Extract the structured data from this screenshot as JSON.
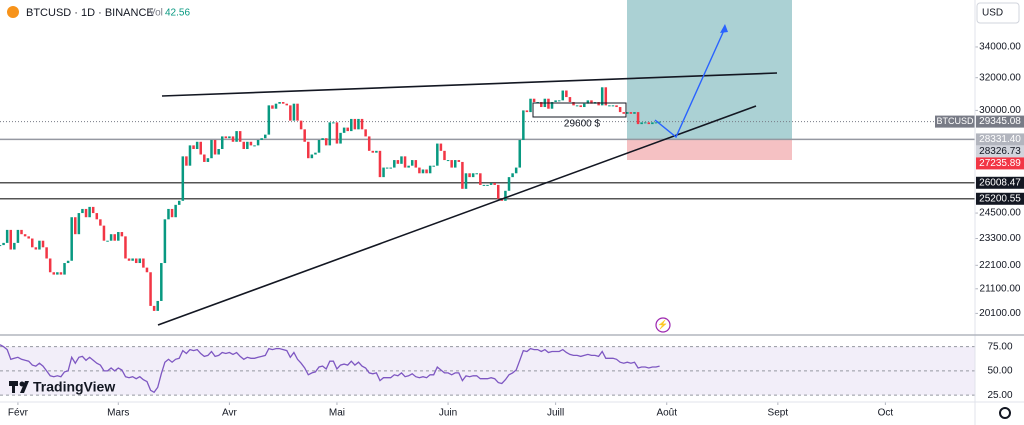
{
  "header": {
    "symbol": "BTCUSD · 1D · BINANCE",
    "vol_label": "Vol",
    "vol_value": "42.56",
    "currency": "USD",
    "brand": "TradingView",
    "note": "29600 $"
  },
  "chart_data": [
    {
      "type": "candlestick",
      "values": [
        23000,
        23100,
        23700,
        22800,
        23100,
        23700,
        23500,
        23400,
        23300,
        22900,
        22800,
        23200,
        22900,
        22400,
        21800,
        21700,
        21800,
        21700,
        22200,
        22300,
        24300,
        23500,
        24500,
        24700,
        24300,
        24800,
        24500,
        24200,
        23900,
        23200,
        23200,
        23500,
        23200,
        23600,
        23400,
        22400,
        22300,
        22400,
        22200,
        22400,
        22000,
        21800,
        20400,
        20200,
        20600,
        22200,
        24200,
        24700,
        24300,
        24900,
        25100,
        27400,
        26900,
        28000,
        27800,
        28200,
        27500,
        27100,
        27300,
        28300,
        27500,
        27800,
        28500,
        28400,
        28500,
        28200,
        28800,
        28200,
        27800,
        28200,
        28000,
        28000,
        28300,
        28400,
        28600,
        30300,
        30100,
        30400,
        30500,
        30400,
        30300,
        29400,
        30400,
        29400,
        28900,
        28200,
        27300,
        27500,
        27600,
        28300,
        28400,
        28000,
        29300,
        29300,
        28100,
        28700,
        29000,
        28800,
        29500,
        28900,
        29500,
        28900,
        28500,
        27700,
        27600,
        27700,
        26300,
        26800,
        26800,
        26800,
        27200,
        27000,
        27400,
        26800,
        26900,
        27200,
        26800,
        26500,
        26700,
        26500,
        26900,
        26900,
        28100,
        27700,
        27200,
        27200,
        26800,
        27200,
        27100,
        25700,
        26500,
        26300,
        26500,
        26500,
        25900,
        25900,
        25900,
        26000,
        25900,
        25200,
        25100,
        25600,
        26300,
        26500,
        26800,
        28300,
        30000,
        29900,
        30700,
        30500,
        30500,
        30200,
        30700,
        30100,
        30500,
        30600,
        30600,
        31200,
        30800,
        30500,
        30300,
        30300,
        30200,
        30400,
        30600,
        30400,
        30500,
        30300,
        31400,
        30300,
        30300,
        30300,
        30200,
        29900,
        29800,
        29900,
        29800,
        29900,
        29200,
        29300,
        29300,
        29200,
        29300,
        29300,
        29345
      ],
      "up_color": "#089981",
      "down_color": "#f23645",
      "xlim": [
        0,
        272
      ],
      "xticks": [
        {
          "value": 5,
          "label": "Févr"
        },
        {
          "value": 33,
          "label": "Mars"
        },
        {
          "value": 64,
          "label": "Avr"
        },
        {
          "value": 94,
          "label": "Mai"
        },
        {
          "value": 125,
          "label": "Juin"
        },
        {
          "value": 155,
          "label": "Juill"
        },
        {
          "value": 186,
          "label": "Août"
        },
        {
          "value": 217,
          "label": "Sept"
        },
        {
          "value": 247,
          "label": "Oct"
        }
      ],
      "log_scale": true,
      "ylim": [
        19300,
        37300
      ],
      "yticks": [
        {
          "value": 34000,
          "label": "34000.00"
        },
        {
          "value": 32000,
          "label": "32000.00"
        },
        {
          "value": 30000,
          "label": "30000.00"
        },
        {
          "value": 24500,
          "label": "24500.00"
        },
        {
          "value": 23300,
          "label": "23300.00"
        },
        {
          "value": 22100,
          "label": "22100.00"
        },
        {
          "value": 21100,
          "label": "21100.00"
        },
        {
          "value": 20100,
          "label": "20100.00"
        }
      ],
      "last": {
        "name": "BTCUSD",
        "value": 29345.08,
        "label": "29345.08",
        "color": "#787b86"
      },
      "levels": [
        {
          "value": 28331.4,
          "label": "28331.40",
          "color": "#b2b5be",
          "line": true
        },
        {
          "value": 28326.73,
          "label": "28326.73",
          "color": "#d1d4dc",
          "line": false
        },
        {
          "value": 27235.89,
          "label": "27235.89",
          "color": "#f23645",
          "line": false
        },
        {
          "value": 26008.47,
          "label": "26008.47",
          "color": "#131722",
          "line": true
        },
        {
          "value": 25200.55,
          "label": "25200.55",
          "color": "#131722",
          "line": true
        }
      ]
    },
    {
      "type": "line",
      "color": "#7e57c2",
      "values": [
        77,
        75,
        72,
        62,
        63,
        64,
        62,
        61,
        60,
        56,
        55,
        58,
        55,
        50,
        45,
        44,
        45,
        44,
        49,
        50,
        64,
        58,
        64,
        65,
        61,
        64,
        61,
        58,
        56,
        50,
        50,
        53,
        50,
        53,
        51,
        44,
        43,
        44,
        42,
        44,
        41,
        39,
        30,
        28,
        33,
        47,
        59,
        62,
        59,
        62,
        63,
        71,
        68,
        72,
        71,
        72,
        68,
        65,
        66,
        70,
        65,
        66,
        69,
        68,
        69,
        67,
        69,
        65,
        62,
        64,
        63,
        63,
        64,
        65,
        66,
        73,
        72,
        73,
        73,
        72,
        71,
        64,
        69,
        62,
        58,
        53,
        46,
        48,
        49,
        54,
        55,
        52,
        60,
        60,
        52,
        56,
        57,
        56,
        60,
        56,
        59,
        55,
        53,
        48,
        47,
        48,
        40,
        43,
        43,
        43,
        46,
        45,
        48,
        44,
        45,
        47,
        44,
        43,
        44,
        43,
        46,
        46,
        54,
        51,
        48,
        48,
        46,
        48,
        48,
        40,
        45,
        44,
        45,
        45,
        42,
        42,
        42,
        43,
        42,
        38,
        37,
        41,
        46,
        48,
        51,
        61,
        71,
        70,
        73,
        72,
        72,
        70,
        72,
        69,
        70,
        70,
        70,
        72,
        69,
        67,
        66,
        66,
        65,
        66,
        67,
        66,
        66,
        65,
        70,
        63,
        63,
        63,
        62,
        59,
        58,
        59,
        58,
        59,
        53,
        54,
        54,
        53,
        54,
        54,
        55
      ],
      "xlim": [
        0,
        272
      ],
      "ylim": [
        19,
        86
      ],
      "yticks": [
        {
          "value": 75,
          "label": "75.00"
        },
        {
          "value": 50,
          "label": "50.00"
        },
        {
          "value": 25,
          "label": "25.00"
        }
      ]
    }
  ]
}
